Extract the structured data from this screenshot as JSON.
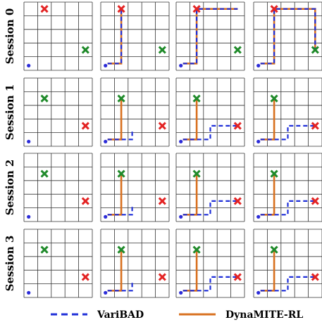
{
  "sessions": [
    "Session 0",
    "Session 1",
    "Session 2",
    "Session 3"
  ],
  "legend": [
    {
      "label": "VariBAD",
      "color": "#1f2fd8",
      "dash": true
    },
    {
      "label": "DynaMITE-RL",
      "color": "#d8701f",
      "dash": false
    }
  ],
  "colors": {
    "grid": "#333333",
    "varibad": "#1f2fd8",
    "dynamite": "#d8701f",
    "start_dot": "#2b2bd8",
    "goal_red": "#e32424",
    "goal_green": "#1f8a2a"
  },
  "grid_size": 5,
  "rows": [
    {
      "session": "Session 0",
      "red_goal": [
        1,
        4
      ],
      "green_goal": [
        4,
        1
      ],
      "panels": [
        {
          "varibad": [],
          "dynamite": []
        },
        {
          "varibad": [
            [
              0,
              0
            ],
            [
              1,
              0
            ],
            [
              1,
              4
            ]
          ],
          "dynamite": [
            [
              0,
              0
            ],
            [
              1,
              0
            ],
            [
              1,
              4
            ]
          ]
        },
        {
          "varibad": [
            [
              0,
              0
            ],
            [
              1,
              0
            ],
            [
              1,
              4
            ],
            [
              4,
              4
            ]
          ],
          "dynamite": [
            [
              0,
              0
            ],
            [
              1,
              0
            ],
            [
              1,
              4
            ],
            [
              4,
              4
            ]
          ]
        },
        {
          "varibad": [
            [
              0,
              0
            ],
            [
              1,
              0
            ],
            [
              1,
              4
            ],
            [
              4,
              4
            ],
            [
              4,
              1
            ]
          ],
          "dynamite": [
            [
              0,
              0
            ],
            [
              1,
              0
            ],
            [
              1,
              4
            ],
            [
              4,
              4
            ],
            [
              4,
              1
            ]
          ]
        }
      ]
    },
    {
      "session": "Session 1",
      "red_goal": [
        4,
        1
      ],
      "green_goal": [
        1,
        3
      ],
      "panels": [
        {
          "varibad": [],
          "dynamite": []
        },
        {
          "varibad": [
            [
              0,
              0
            ],
            [
              1.8,
              0
            ],
            [
              1.8,
              0.7
            ]
          ],
          "dynamite": [
            [
              0,
              0
            ],
            [
              1,
              0
            ],
            [
              1,
              3
            ]
          ]
        },
        {
          "varibad": [
            [
              0,
              0
            ],
            [
              2,
              0
            ],
            [
              2,
              1
            ],
            [
              4,
              1
            ]
          ],
          "dynamite": [
            [
              0,
              0
            ],
            [
              1,
              0
            ],
            [
              1,
              3
            ]
          ]
        },
        {
          "varibad": [
            [
              0,
              0
            ],
            [
              2,
              0
            ],
            [
              2,
              1
            ],
            [
              4,
              1
            ]
          ],
          "dynamite": [
            [
              0,
              0
            ],
            [
              1,
              0
            ],
            [
              1,
              3
            ]
          ]
        }
      ]
    },
    {
      "session": "Session 2",
      "red_goal": [
        4,
        1
      ],
      "green_goal": [
        1,
        3
      ],
      "panels": [
        {
          "varibad": [],
          "dynamite": []
        },
        {
          "varibad": [
            [
              0,
              0
            ],
            [
              1.8,
              0
            ],
            [
              1.8,
              0.7
            ]
          ],
          "dynamite": [
            [
              0,
              0
            ],
            [
              1,
              0
            ],
            [
              1,
              3
            ]
          ]
        },
        {
          "varibad": [
            [
              0,
              0
            ],
            [
              2,
              0
            ],
            [
              2,
              1
            ],
            [
              4,
              1
            ]
          ],
          "dynamite": [
            [
              0,
              0
            ],
            [
              1,
              0
            ],
            [
              1,
              3
            ]
          ]
        },
        {
          "varibad": [
            [
              0,
              0
            ],
            [
              2,
              0
            ],
            [
              2,
              1
            ],
            [
              4,
              1
            ]
          ],
          "dynamite": [
            [
              0,
              0
            ],
            [
              1,
              0
            ],
            [
              1,
              3
            ]
          ]
        }
      ]
    },
    {
      "session": "Session 3",
      "red_goal": [
        4,
        1
      ],
      "green_goal": [
        1,
        3
      ],
      "panels": [
        {
          "varibad": [],
          "dynamite": []
        },
        {
          "varibad": [
            [
              0,
              0
            ],
            [
              1.8,
              0
            ],
            [
              1.8,
              0.7
            ]
          ],
          "dynamite": [
            [
              0,
              0
            ],
            [
              1,
              0
            ],
            [
              1,
              3
            ]
          ]
        },
        {
          "varibad": [
            [
              0,
              0
            ],
            [
              2,
              0
            ],
            [
              2,
              1
            ],
            [
              4,
              1
            ]
          ],
          "dynamite": [
            [
              0,
              0
            ],
            [
              1,
              0
            ],
            [
              1,
              3
            ]
          ]
        },
        {
          "varibad": [
            [
              0,
              0
            ],
            [
              2,
              0
            ],
            [
              2,
              1
            ],
            [
              4,
              1
            ]
          ],
          "dynamite": [
            [
              0,
              0
            ],
            [
              1,
              0
            ],
            [
              1,
              3
            ]
          ]
        }
      ]
    }
  ]
}
